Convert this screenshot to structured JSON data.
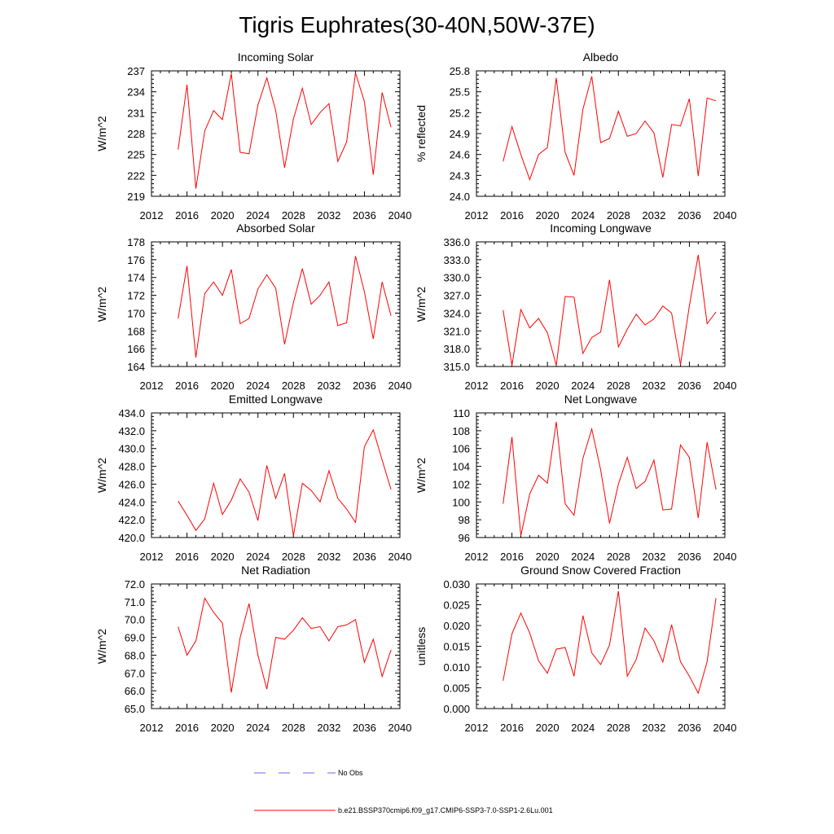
{
  "title": "Tigris Euphrates(30-40N,50W-37E)",
  "colors": {
    "model": "#ff0000",
    "obs": "#6a6adc",
    "axis": "#000000"
  },
  "legend": [
    {
      "label": "No Obs",
      "style": "dashed",
      "color": "#6a6adc"
    },
    {
      "label": "b.e21.BSSP370cmip6.f09_g17.CMIP6-SSP3-7.0-SSP1-2.6Lu.001",
      "style": "solid",
      "color": "#ff0000"
    }
  ],
  "chart_data": [
    {
      "type": "line",
      "title": "Incoming Solar",
      "ylabel": "W/m^2",
      "xlim": [
        2012,
        2040
      ],
      "xticks": [
        2012,
        2016,
        2020,
        2024,
        2028,
        2032,
        2036,
        2040
      ],
      "ylim": [
        219,
        237
      ],
      "yticks": [
        "219",
        "222",
        "225",
        "228",
        "231",
        "234",
        "237"
      ],
      "x": [
        2015,
        2016,
        2017,
        2018,
        2019,
        2020,
        2021,
        2022,
        2023,
        2024,
        2025,
        2026,
        2027,
        2028,
        2029,
        2030,
        2031,
        2032,
        2033,
        2034,
        2035,
        2036,
        2037,
        2038,
        2039
      ],
      "series": [
        {
          "values": [
            225.7,
            235.0,
            220.1,
            228.4,
            231.3,
            230.0,
            236.6,
            225.3,
            225.1,
            232.1,
            236.0,
            231.3,
            223.1,
            230.1,
            234.5,
            229.3,
            231.0,
            232.3,
            224.0,
            226.8,
            236.7,
            232.6,
            222.1,
            233.9,
            228.9
          ]
        }
      ]
    },
    {
      "type": "line",
      "title": "Albedo",
      "ylabel": "% reflected",
      "xlim": [
        2012,
        2040
      ],
      "xticks": [
        2012,
        2016,
        2020,
        2024,
        2028,
        2032,
        2036,
        2040
      ],
      "ylim": [
        24.0,
        25.8
      ],
      "yticks": [
        "24.0",
        "24.3",
        "24.6",
        "24.9",
        "25.2",
        "25.5",
        "25.8"
      ],
      "x": [
        2015,
        2016,
        2017,
        2018,
        2019,
        2020,
        2021,
        2022,
        2023,
        2024,
        2025,
        2026,
        2027,
        2028,
        2029,
        2030,
        2031,
        2032,
        2033,
        2034,
        2035,
        2036,
        2037,
        2038,
        2039
      ],
      "series": [
        {
          "values": [
            24.5,
            25.0,
            24.6,
            24.24,
            24.6,
            24.7,
            25.7,
            24.63,
            24.3,
            25.25,
            25.72,
            24.77,
            24.83,
            25.22,
            24.86,
            24.9,
            25.08,
            24.91,
            24.27,
            25.03,
            25.01,
            25.4,
            24.29,
            25.41,
            25.37
          ]
        }
      ]
    },
    {
      "type": "line",
      "title": "Absorbed Solar",
      "ylabel": "W/m^2",
      "xlim": [
        2012,
        2040
      ],
      "xticks": [
        2012,
        2016,
        2020,
        2024,
        2028,
        2032,
        2036,
        2040
      ],
      "ylim": [
        164,
        178
      ],
      "yticks": [
        "164",
        "166",
        "168",
        "170",
        "172",
        "174",
        "176",
        "178"
      ],
      "x": [
        2015,
        2016,
        2017,
        2018,
        2019,
        2020,
        2021,
        2022,
        2023,
        2024,
        2025,
        2026,
        2027,
        2028,
        2029,
        2030,
        2031,
        2032,
        2033,
        2034,
        2035,
        2036,
        2037,
        2038,
        2039
      ],
      "series": [
        {
          "values": [
            169.4,
            175.3,
            165.0,
            172.2,
            173.5,
            172.0,
            174.9,
            168.8,
            169.4,
            172.7,
            174.3,
            172.8,
            166.5,
            171.2,
            175.0,
            171.0,
            172.0,
            173.5,
            168.6,
            168.9,
            176.4,
            172.4,
            167.1,
            173.5,
            169.7
          ]
        }
      ]
    },
    {
      "type": "line",
      "title": "Incoming Longwave",
      "ylabel": "W/m^2",
      "xlim": [
        2012,
        2040
      ],
      "xticks": [
        2012,
        2016,
        2020,
        2024,
        2028,
        2032,
        2036,
        2040
      ],
      "ylim": [
        315.0,
        336.0
      ],
      "yticks": [
        "315.0",
        "318.0",
        "321.0",
        "324.0",
        "327.0",
        "330.0",
        "333.0",
        "336.0"
      ],
      "x": [
        2015,
        2016,
        2017,
        2018,
        2019,
        2020,
        2021,
        2022,
        2023,
        2024,
        2025,
        2026,
        2027,
        2028,
        2029,
        2030,
        2031,
        2032,
        2033,
        2034,
        2035,
        2036,
        2037,
        2038,
        2039
      ],
      "series": [
        {
          "values": [
            324.5,
            315.2,
            324.6,
            321.5,
            323.1,
            320.7,
            315.2,
            326.8,
            326.7,
            317.2,
            319.9,
            320.8,
            329.6,
            318.3,
            321.3,
            323.8,
            322.0,
            323.0,
            325.2,
            324.0,
            315.3,
            325.2,
            333.8,
            322.2,
            324.2
          ]
        }
      ]
    },
    {
      "type": "line",
      "title": "Emitted Longwave",
      "ylabel": "W/m^2",
      "xlim": [
        2012,
        2040
      ],
      "xticks": [
        2012,
        2016,
        2020,
        2024,
        2028,
        2032,
        2036,
        2040
      ],
      "ylim": [
        420.0,
        434.0
      ],
      "yticks": [
        "420.0",
        "422.0",
        "424.0",
        "426.0",
        "428.0",
        "430.0",
        "432.0",
        "434.0"
      ],
      "x": [
        2015,
        2016,
        2017,
        2018,
        2019,
        2020,
        2021,
        2022,
        2023,
        2024,
        2025,
        2026,
        2027,
        2028,
        2029,
        2030,
        2031,
        2032,
        2033,
        2034,
        2035,
        2036,
        2037,
        2038,
        2039
      ],
      "series": [
        {
          "values": [
            424.1,
            422.5,
            420.8,
            422.1,
            426.1,
            422.6,
            424.2,
            426.6,
            425.1,
            421.9,
            428.1,
            424.4,
            427.2,
            420.2,
            426.1,
            425.3,
            424.0,
            427.5,
            424.4,
            423.2,
            421.7,
            430.2,
            432.1,
            428.7,
            425.4
          ]
        }
      ]
    },
    {
      "type": "line",
      "title": "Net Longwave",
      "ylabel": "W/m^2",
      "xlim": [
        2012,
        2040
      ],
      "xticks": [
        2012,
        2016,
        2020,
        2024,
        2028,
        2032,
        2036,
        2040
      ],
      "ylim": [
        96,
        110
      ],
      "yticks": [
        "96",
        "98",
        "100",
        "102",
        "104",
        "106",
        "108",
        "110"
      ],
      "x": [
        2015,
        2016,
        2017,
        2018,
        2019,
        2020,
        2021,
        2022,
        2023,
        2024,
        2025,
        2026,
        2027,
        2028,
        2029,
        2030,
        2031,
        2032,
        2033,
        2034,
        2035,
        2036,
        2037,
        2038,
        2039
      ],
      "series": [
        {
          "values": [
            99.8,
            107.3,
            96.2,
            100.9,
            103.0,
            102.1,
            109.0,
            99.8,
            98.5,
            104.9,
            108.2,
            103.6,
            97.6,
            102.0,
            105.0,
            101.5,
            102.3,
            104.7,
            99.1,
            99.2,
            106.4,
            105.0,
            98.2,
            106.7,
            101.4
          ]
        }
      ]
    },
    {
      "type": "line",
      "title": "Net Radiation",
      "ylabel": "W/m^2",
      "xlim": [
        2012,
        2040
      ],
      "xticks": [
        2012,
        2016,
        2020,
        2024,
        2028,
        2032,
        2036,
        2040
      ],
      "ylim": [
        65.0,
        72.0
      ],
      "yticks": [
        "65.0",
        "66.0",
        "67.0",
        "68.0",
        "69.0",
        "70.0",
        "71.0",
        "72.0"
      ],
      "x": [
        2015,
        2016,
        2017,
        2018,
        2019,
        2020,
        2021,
        2022,
        2023,
        2024,
        2025,
        2026,
        2027,
        2028,
        2029,
        2030,
        2031,
        2032,
        2033,
        2034,
        2035,
        2036,
        2037,
        2038,
        2039
      ],
      "series": [
        {
          "values": [
            69.6,
            68.0,
            68.8,
            71.2,
            70.4,
            69.8,
            65.9,
            69.0,
            70.9,
            68.0,
            66.1,
            69.0,
            68.9,
            69.4,
            70.1,
            69.5,
            69.6,
            68.8,
            69.6,
            69.7,
            70.0,
            67.6,
            68.9,
            66.8,
            68.3
          ]
        }
      ]
    },
    {
      "type": "line",
      "title": "Ground Snow Covered Fraction",
      "ylabel": "unitless",
      "xlim": [
        2012,
        2040
      ],
      "xticks": [
        2012,
        2016,
        2020,
        2024,
        2028,
        2032,
        2036,
        2040
      ],
      "ylim": [
        0.0,
        0.03
      ],
      "yticks": [
        "0.000",
        "0.005",
        "0.010",
        "0.015",
        "0.020",
        "0.025",
        "0.030"
      ],
      "x": [
        2015,
        2016,
        2017,
        2018,
        2019,
        2020,
        2021,
        2022,
        2023,
        2024,
        2025,
        2026,
        2027,
        2028,
        2029,
        2030,
        2031,
        2032,
        2033,
        2034,
        2035,
        2036,
        2037,
        2038,
        2039
      ],
      "series": [
        {
          "values": [
            0.0067,
            0.018,
            0.023,
            0.0182,
            0.0115,
            0.0085,
            0.0143,
            0.0147,
            0.0078,
            0.0224,
            0.0134,
            0.0106,
            0.0153,
            0.0283,
            0.0078,
            0.0118,
            0.0194,
            0.0163,
            0.0112,
            0.0202,
            0.0113,
            0.0078,
            0.0037,
            0.0113,
            0.0266
          ]
        }
      ]
    }
  ]
}
